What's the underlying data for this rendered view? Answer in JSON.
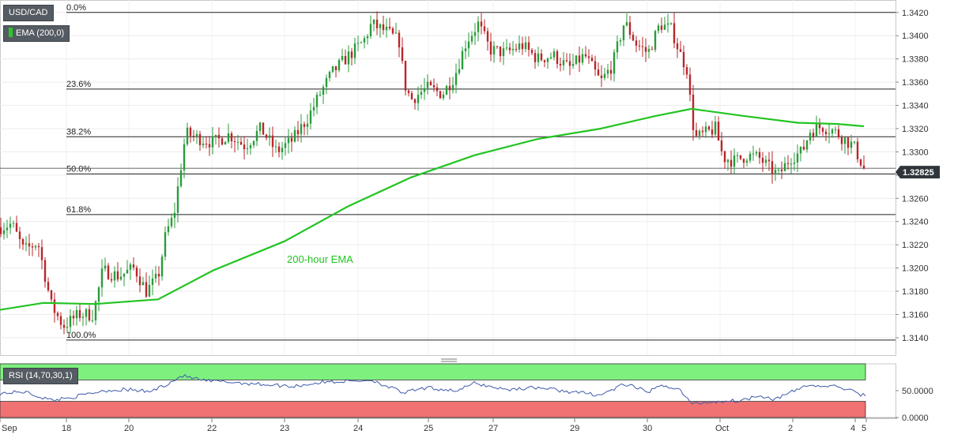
{
  "symbol": "USD/CAD",
  "ema_indicator": {
    "label": "EMA (200,0)",
    "color": "#2ac82a"
  },
  "rsi_indicator": {
    "label": "RSI (14,70,30,1)"
  },
  "colors": {
    "up": "#2a9c3b",
    "down": "#b8262b",
    "ema": "#22c422",
    "rsi": "#3d5aa8",
    "overbought_band": "#7ef07e",
    "oversold_band": "#f07272",
    "price_tag": "#2f353b"
  },
  "chart_data": [
    {
      "type": "line",
      "chart": "candlestick",
      "ylim": [
        1.3125,
        1.3428
      ],
      "y_ticks": [
        "1.3140",
        "1.3160",
        "1.3180",
        "1.3200",
        "1.3220",
        "1.3240",
        "1.3260",
        "1.3280",
        "1.3300",
        "1.3320",
        "1.3340",
        "1.3360",
        "1.3380",
        "1.3400",
        "1.3420"
      ],
      "x_ticks": [
        "Sep",
        "18",
        "20",
        "22",
        "23",
        "24",
        "25",
        "27",
        "29",
        "30",
        "Oct",
        "2",
        "4",
        "5"
      ],
      "current_price": "1.32825",
      "fibonacci_levels": [
        {
          "label": "0.0%",
          "price": 1.342
        },
        {
          "label": "23.6%",
          "price": 1.3354
        },
        {
          "label": "38.2%",
          "price": 1.3313
        },
        {
          "label": "50.0%",
          "price": 1.3281
        },
        {
          "label": "61.8%",
          "price": 1.3246
        },
        {
          "label": "100.0%",
          "price": 1.3138
        }
      ],
      "ema_annotation": "200-hour EMA",
      "ema_series": [
        [
          0,
          1.3164
        ],
        [
          55,
          1.317
        ],
        [
          120,
          1.3169
        ],
        [
          200,
          1.3173
        ],
        [
          270,
          1.3198
        ],
        [
          360,
          1.3223
        ],
        [
          440,
          1.3253
        ],
        [
          520,
          1.3278
        ],
        [
          600,
          1.3297
        ],
        [
          680,
          1.3311
        ],
        [
          760,
          1.332
        ],
        [
          830,
          1.3331
        ],
        [
          875,
          1.3337
        ],
        [
          940,
          1.3331
        ],
        [
          1010,
          1.3325
        ],
        [
          1060,
          1.3324
        ],
        [
          1093,
          1.3322
        ]
      ],
      "close_path": [
        [
          0,
          1.3235
        ],
        [
          15,
          1.3238
        ],
        [
          30,
          1.3215
        ],
        [
          48,
          1.3222
        ],
        [
          65,
          1.3168
        ],
        [
          80,
          1.315
        ],
        [
          100,
          1.316
        ],
        [
          118,
          1.316
        ],
        [
          130,
          1.3198
        ],
        [
          150,
          1.3193
        ],
        [
          170,
          1.32
        ],
        [
          185,
          1.318
        ],
        [
          200,
          1.3192
        ],
        [
          210,
          1.323
        ],
        [
          220,
          1.3245
        ],
        [
          228,
          1.3283
        ],
        [
          235,
          1.3316
        ],
        [
          250,
          1.3312
        ],
        [
          270,
          1.3308
        ],
        [
          290,
          1.3315
        ],
        [
          310,
          1.3305
        ],
        [
          330,
          1.332
        ],
        [
          350,
          1.33
        ],
        [
          370,
          1.331
        ],
        [
          390,
          1.333
        ],
        [
          405,
          1.335
        ],
        [
          420,
          1.3368
        ],
        [
          440,
          1.3382
        ],
        [
          460,
          1.3395
        ],
        [
          470,
          1.341
        ],
        [
          490,
          1.3403
        ],
        [
          505,
          1.3395
        ],
        [
          512,
          1.3358
        ],
        [
          520,
          1.3345
        ],
        [
          540,
          1.3355
        ],
        [
          560,
          1.335
        ],
        [
          575,
          1.3365
        ],
        [
          590,
          1.3395
        ],
        [
          605,
          1.341
        ],
        [
          620,
          1.3388
        ],
        [
          640,
          1.3385
        ],
        [
          660,
          1.3392
        ],
        [
          680,
          1.338
        ],
        [
          700,
          1.3383
        ],
        [
          720,
          1.3372
        ],
        [
          740,
          1.3383
        ],
        [
          760,
          1.336
        ],
        [
          775,
          1.3375
        ],
        [
          790,
          1.3412
        ],
        [
          805,
          1.3393
        ],
        [
          820,
          1.3385
        ],
        [
          835,
          1.341
        ],
        [
          850,
          1.3405
        ],
        [
          860,
          1.3385
        ],
        [
          870,
          1.337
        ],
        [
          875,
          1.333
        ],
        [
          880,
          1.3312
        ],
        [
          890,
          1.3315
        ],
        [
          905,
          1.332
        ],
        [
          915,
          1.3295
        ],
        [
          930,
          1.3292
        ],
        [
          945,
          1.3297
        ],
        [
          960,
          1.3295
        ],
        [
          975,
          1.3285
        ],
        [
          985,
          1.328
        ],
        [
          1000,
          1.3295
        ],
        [
          1015,
          1.33
        ],
        [
          1025,
          1.3318
        ],
        [
          1040,
          1.3322
        ],
        [
          1055,
          1.3318
        ],
        [
          1070,
          1.331
        ],
        [
          1080,
          1.3305
        ],
        [
          1095,
          1.3283
        ]
      ]
    },
    {
      "type": "line",
      "chart": "RSI",
      "ylim": [
        0,
        100
      ],
      "y_ticks": [
        "50.0000",
        "0.0000"
      ],
      "overbought": 70,
      "oversold": 30,
      "rsi_series": [
        [
          0,
          45
        ],
        [
          30,
          48
        ],
        [
          65,
          32
        ],
        [
          100,
          40
        ],
        [
          130,
          50
        ],
        [
          160,
          52
        ],
        [
          190,
          48
        ],
        [
          215,
          65
        ],
        [
          230,
          78
        ],
        [
          260,
          68
        ],
        [
          290,
          66
        ],
        [
          330,
          62
        ],
        [
          370,
          58
        ],
        [
          410,
          66
        ],
        [
          450,
          68
        ],
        [
          470,
          70
        ],
        [
          510,
          46
        ],
        [
          540,
          55
        ],
        [
          580,
          50
        ],
        [
          600,
          64
        ],
        [
          640,
          52
        ],
        [
          680,
          56
        ],
        [
          720,
          48
        ],
        [
          760,
          42
        ],
        [
          790,
          62
        ],
        [
          820,
          48
        ],
        [
          840,
          60
        ],
        [
          860,
          52
        ],
        [
          875,
          25
        ],
        [
          890,
          28
        ],
        [
          910,
          30
        ],
        [
          940,
          32
        ],
        [
          960,
          42
        ],
        [
          980,
          34
        ],
        [
          1000,
          46
        ],
        [
          1020,
          60
        ],
        [
          1040,
          58
        ],
        [
          1060,
          58
        ],
        [
          1080,
          48
        ],
        [
          1095,
          40
        ]
      ]
    }
  ]
}
